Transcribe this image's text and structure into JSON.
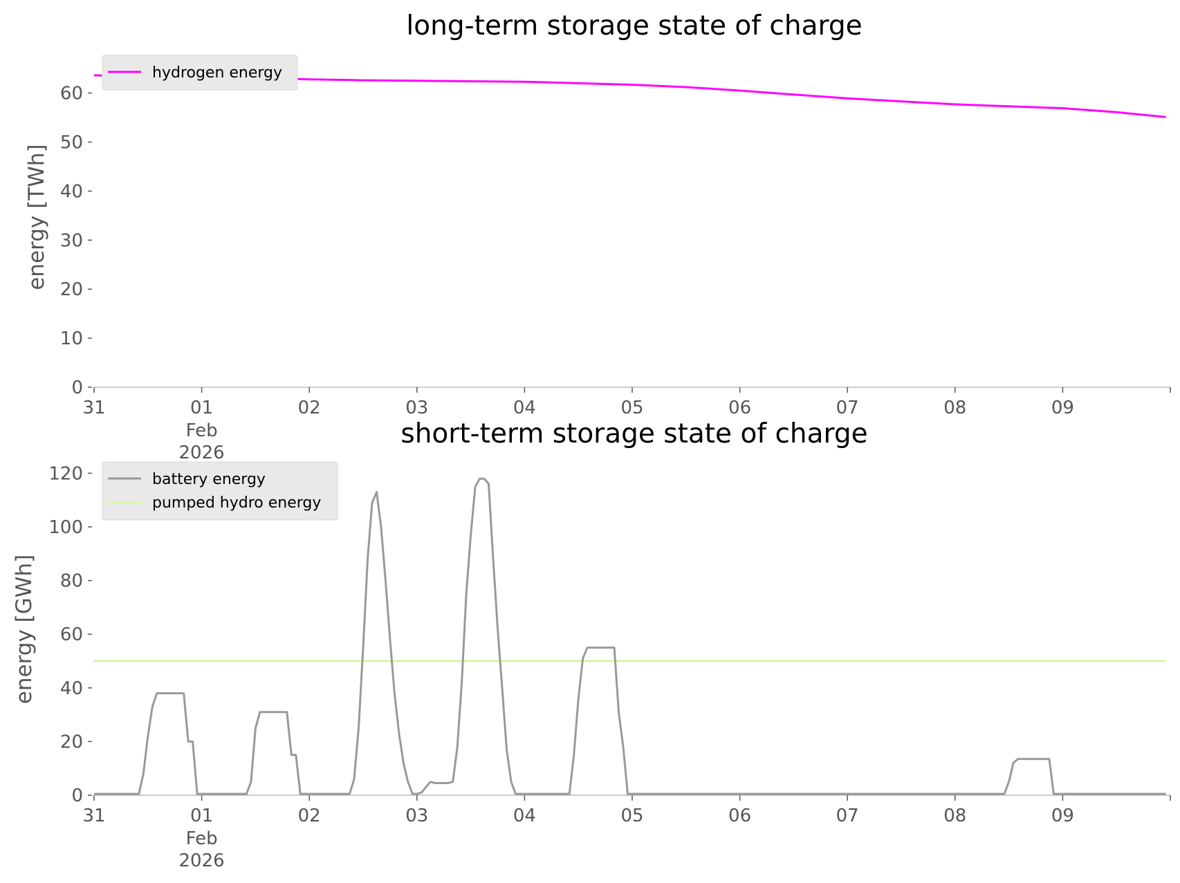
{
  "colors": {
    "hydrogen": "#ff00ff",
    "battery": "#999999",
    "pumped_hydro": "#d8f5a2",
    "axis": "#555555",
    "legend_bg": "#e9e9e9"
  },
  "chart_data": [
    {
      "type": "line",
      "title": "long-term storage state of charge",
      "ylabel": "energy [TWh]",
      "xlabel": "",
      "xlim": [
        "2026-01-31",
        "2026-02-10"
      ],
      "ylim": [
        0,
        66
      ],
      "y_ticks": [
        "0",
        "10",
        "20",
        "30",
        "40",
        "50",
        "60"
      ],
      "x_ticks": [
        {
          "day": 0,
          "label": "31"
        },
        {
          "day": 1,
          "label": "01",
          "sub": [
            "Feb",
            "2026"
          ]
        },
        {
          "day": 2,
          "label": "02"
        },
        {
          "day": 3,
          "label": "03"
        },
        {
          "day": 4,
          "label": "04"
        },
        {
          "day": 5,
          "label": "05"
        },
        {
          "day": 6,
          "label": "06"
        },
        {
          "day": 7,
          "label": "07"
        },
        {
          "day": 8,
          "label": "08"
        },
        {
          "day": 9,
          "label": "09"
        }
      ],
      "grid": false,
      "legend_position": "upper-left",
      "series": [
        {
          "name": "hydrogen energy",
          "color": "#ff00ff",
          "x": [
            "2026-01-31T00:00",
            "2026-02-01T00:00",
            "2026-02-01T12:00",
            "2026-02-02T00:00",
            "2026-02-02T12:00",
            "2026-02-03T00:00",
            "2026-02-03T12:00",
            "2026-02-04T00:00",
            "2026-02-04T12:00",
            "2026-02-05T00:00",
            "2026-02-05T12:00",
            "2026-02-06T00:00",
            "2026-02-06T12:00",
            "2026-02-07T00:00",
            "2026-02-07T12:00",
            "2026-02-08T00:00",
            "2026-02-08T12:00",
            "2026-02-09T00:00",
            "2026-02-09T12:00",
            "2026-02-09T23:00"
          ],
          "values": [
            63.6,
            63.4,
            63.1,
            62.8,
            62.6,
            62.5,
            62.4,
            62.3,
            62.0,
            61.7,
            61.2,
            60.5,
            59.7,
            58.9,
            58.3,
            57.7,
            57.3,
            56.9,
            56.1,
            55.1
          ]
        }
      ]
    },
    {
      "type": "line",
      "title": "short-term storage state of charge",
      "ylabel": "energy [GWh]",
      "xlabel": "",
      "xlim": [
        "2026-01-31",
        "2026-02-10"
      ],
      "ylim": [
        0,
        125
      ],
      "y_ticks": [
        "0",
        "20",
        "40",
        "60",
        "80",
        "100",
        "120"
      ],
      "x_ticks": [
        {
          "day": 0,
          "label": "31"
        },
        {
          "day": 1,
          "label": "01",
          "sub": [
            "Feb",
            "2026"
          ]
        },
        {
          "day": 2,
          "label": "02"
        },
        {
          "day": 3,
          "label": "03"
        },
        {
          "day": 4,
          "label": "04"
        },
        {
          "day": 5,
          "label": "05"
        },
        {
          "day": 6,
          "label": "06"
        },
        {
          "day": 7,
          "label": "07"
        },
        {
          "day": 8,
          "label": "08"
        },
        {
          "day": 9,
          "label": "09"
        }
      ],
      "grid": false,
      "legend_position": "upper-left",
      "series": [
        {
          "name": "battery energy",
          "color": "#999999",
          "x": [
            "2026-01-31T00:00",
            "2026-01-31T10:00",
            "2026-01-31T11:00",
            "2026-01-31T12:00",
            "2026-01-31T13:00",
            "2026-01-31T14:00",
            "2026-01-31T20:00",
            "2026-01-31T21:00",
            "2026-01-31T22:00",
            "2026-01-31T23:00",
            "2026-02-01T10:00",
            "2026-02-01T11:00",
            "2026-02-01T12:00",
            "2026-02-01T13:00",
            "2026-02-01T19:00",
            "2026-02-01T20:00",
            "2026-02-01T21:00",
            "2026-02-01T22:00",
            "2026-02-02T09:00",
            "2026-02-02T10:00",
            "2026-02-02T11:00",
            "2026-02-02T12:00",
            "2026-02-02T13:00",
            "2026-02-02T14:00",
            "2026-02-02T15:00",
            "2026-02-02T16:00",
            "2026-02-02T17:00",
            "2026-02-02T18:00",
            "2026-02-02T19:00",
            "2026-02-02T20:00",
            "2026-02-02T21:00",
            "2026-02-02T22:00",
            "2026-02-02T23:00",
            "2026-02-03T00:00",
            "2026-02-03T01:00",
            "2026-02-03T03:00",
            "2026-02-03T04:00",
            "2026-02-03T07:00",
            "2026-02-03T08:00",
            "2026-02-03T09:00",
            "2026-02-03T10:00",
            "2026-02-03T11:00",
            "2026-02-03T12:00",
            "2026-02-03T13:00",
            "2026-02-03T14:00",
            "2026-02-03T15:00",
            "2026-02-03T16:00",
            "2026-02-03T17:00",
            "2026-02-03T18:00",
            "2026-02-03T19:00",
            "2026-02-03T20:00",
            "2026-02-03T21:00",
            "2026-02-03T22:00",
            "2026-02-04T10:00",
            "2026-02-04T11:00",
            "2026-02-04T12:00",
            "2026-02-04T13:00",
            "2026-02-04T14:00",
            "2026-02-04T20:00",
            "2026-02-04T21:00",
            "2026-02-04T22:00",
            "2026-02-04T23:00",
            "2026-02-08T11:00",
            "2026-02-08T12:00",
            "2026-02-08T13:00",
            "2026-02-08T14:00",
            "2026-02-08T21:00",
            "2026-02-08T22:00",
            "2026-02-09T23:00"
          ],
          "values": [
            0.5,
            0.5,
            8,
            22,
            33,
            38,
            38,
            20,
            20,
            0.5,
            0.5,
            5,
            25,
            31,
            31,
            15,
            15,
            0.5,
            0.5,
            6,
            25,
            55,
            88,
            109,
            113,
            100,
            80,
            58,
            38,
            23,
            12,
            5,
            0.5,
            0.5,
            1,
            5,
            4.5,
            4.5,
            5,
            18,
            42,
            75,
            97,
            115,
            118,
            118,
            116,
            88,
            62,
            40,
            17,
            5,
            0.5,
            0.5,
            15,
            36,
            51,
            55,
            55,
            31,
            18,
            0.5,
            0.5,
            5,
            12,
            13.5,
            13.5,
            0.5,
            0.5
          ]
        },
        {
          "name": "pumped hydro energy",
          "color": "#d8f5a2",
          "x": [
            "2026-01-31T00:00",
            "2026-02-09T23:00"
          ],
          "values": [
            50,
            50
          ]
        }
      ]
    }
  ]
}
